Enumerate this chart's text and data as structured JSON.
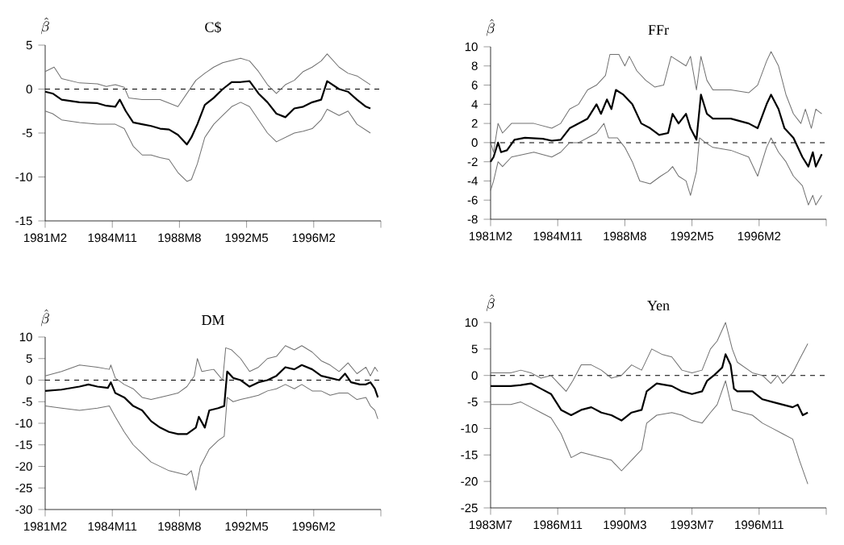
{
  "chart_data": [
    {
      "type": "line",
      "title": "C$",
      "ylabel": "\\hat{\\beta}",
      "xlim": [
        "1981-02",
        "1999-11"
      ],
      "ylim": [
        -15,
        5
      ],
      "xticks": [
        {
          "value": "1981-02",
          "label": "1981M2"
        },
        {
          "value": "1984-11",
          "label": "1984M11"
        },
        {
          "value": "1988-08",
          "label": "1988M8"
        },
        {
          "value": "1992-05",
          "label": "1992M5"
        },
        {
          "value": "1996-02",
          "label": "1996M2"
        },
        {
          "value": "1999-11",
          "label": null
        }
      ],
      "yticks": [
        -15,
        -10,
        -5,
        0,
        5
      ],
      "ref_lines": [
        {
          "axis": "y",
          "value": 0,
          "line_style": "dashed",
          "color": "#000000"
        }
      ],
      "series": [
        {
          "color": "#000000",
          "x": [
            "1981-02",
            "1981-07",
            "1982-01",
            "1983-01",
            "1984-01",
            "1984-07",
            "1985-01",
            "1985-04",
            "1985-08",
            "1986-01",
            "1986-07",
            "1987-01",
            "1987-07",
            "1988-01",
            "1988-07",
            "1989-01",
            "1989-04",
            "1989-08",
            "1990-01",
            "1990-07",
            "1991-01",
            "1991-07",
            "1992-01",
            "1992-07",
            "1993-01",
            "1993-07",
            "1994-01",
            "1994-07",
            "1995-01",
            "1995-07",
            "1996-01",
            "1996-07",
            "1996-11",
            "1997-07",
            "1998-01",
            "1998-07",
            "1999-01",
            "1999-04"
          ],
          "values": [
            -0.3,
            -0.5,
            -1.2,
            -1.5,
            -1.6,
            -1.9,
            -2.0,
            -1.2,
            -2.5,
            -3.8,
            -4.0,
            -4.2,
            -4.5,
            -4.6,
            -5.2,
            -6.3,
            -5.5,
            -4.0,
            -1.8,
            -1.0,
            0.0,
            0.8,
            0.8,
            0.9,
            -0.5,
            -1.5,
            -2.8,
            -3.2,
            -2.2,
            -2.0,
            -1.5,
            -1.2,
            0.9,
            0.0,
            -0.3,
            -1.2,
            -2.0,
            -2.2
          ]
        },
        {
          "color": "#707070",
          "x": [
            "1981-02",
            "1981-08",
            "1982-01",
            "1983-01",
            "1984-01",
            "1984-07",
            "1985-01",
            "1985-07",
            "1985-10",
            "1986-07",
            "1987-07",
            "1988-07",
            "1989-01",
            "1989-07",
            "1990-01",
            "1990-07",
            "1991-01",
            "1992-01",
            "1992-07",
            "1993-01",
            "1993-07",
            "1994-01",
            "1994-07",
            "1995-01",
            "1995-07",
            "1996-01",
            "1996-07",
            "1996-11",
            "1997-07",
            "1998-01",
            "1998-07",
            "1999-04"
          ],
          "values": [
            2.0,
            2.5,
            1.2,
            0.7,
            0.6,
            0.3,
            0.5,
            0.2,
            -1.0,
            -1.2,
            -1.2,
            -2.0,
            -0.5,
            1.0,
            1.8,
            2.5,
            3.0,
            3.5,
            3.2,
            2.0,
            0.5,
            -0.5,
            0.5,
            1.0,
            2.0,
            2.5,
            3.2,
            4.0,
            2.5,
            1.8,
            1.5,
            0.5
          ]
        },
        {
          "color": "#707070",
          "x": [
            "1981-02",
            "1981-07",
            "1982-01",
            "1983-01",
            "1984-01",
            "1985-01",
            "1985-07",
            "1986-01",
            "1986-07",
            "1987-01",
            "1987-07",
            "1988-01",
            "1988-07",
            "1989-01",
            "1989-04",
            "1989-08",
            "1990-01",
            "1990-07",
            "1991-01",
            "1991-07",
            "1992-01",
            "1992-07",
            "1993-01",
            "1993-07",
            "1994-01",
            "1994-07",
            "1995-01",
            "1995-07",
            "1996-01",
            "1996-07",
            "1996-11",
            "1997-07",
            "1998-01",
            "1998-07",
            "1999-04"
          ],
          "values": [
            -2.5,
            -2.8,
            -3.5,
            -3.8,
            -4.0,
            -4.0,
            -4.5,
            -6.5,
            -7.5,
            -7.5,
            -7.8,
            -8.0,
            -9.5,
            -10.5,
            -10.3,
            -8.5,
            -5.5,
            -4.0,
            -3.0,
            -2.0,
            -1.5,
            -2.0,
            -3.5,
            -5.0,
            -6.0,
            -5.5,
            -5.0,
            -4.8,
            -4.5,
            -3.5,
            -2.3,
            -3.0,
            -2.5,
            -4.0,
            -5.0
          ]
        }
      ]
    },
    {
      "type": "line",
      "title": "FFr",
      "ylabel": "\\hat{\\beta}",
      "xlim": [
        "1981-02",
        "1999-11"
      ],
      "ylim": [
        -8,
        10
      ],
      "xticks": [
        {
          "value": "1981-02",
          "label": "1981M2"
        },
        {
          "value": "1984-11",
          "label": "1984M11"
        },
        {
          "value": "1988-08",
          "label": "1988M8"
        },
        {
          "value": "1992-05",
          "label": "1992M5"
        },
        {
          "value": "1996-02",
          "label": "1996M2"
        },
        {
          "value": "1999-11",
          "label": null
        }
      ],
      "yticks": [
        -8,
        -6,
        -4,
        -2,
        0,
        2,
        4,
        6,
        8,
        10
      ],
      "ref_lines": [
        {
          "axis": "y",
          "value": 0,
          "line_style": "dashed",
          "color": "#000000"
        }
      ],
      "series": [
        {
          "color": "#000000",
          "x": [
            "1981-02",
            "1981-04",
            "1981-07",
            "1981-09",
            "1982-01",
            "1982-06",
            "1983-01",
            "1984-01",
            "1984-07",
            "1985-01",
            "1985-07",
            "1986-01",
            "1986-07",
            "1987-01",
            "1987-04",
            "1987-08",
            "1987-11",
            "1988-02",
            "1988-07",
            "1989-01",
            "1989-07",
            "1990-01",
            "1990-07",
            "1991-01",
            "1991-04",
            "1991-08",
            "1992-01",
            "1992-04",
            "1992-08",
            "1992-11",
            "1993-03",
            "1993-07",
            "1994-07",
            "1995-07",
            "1996-01",
            "1996-07",
            "1996-10",
            "1997-03",
            "1997-07",
            "1998-01",
            "1998-07",
            "1998-11",
            "1999-02",
            "1999-04",
            "1999-08"
          ],
          "values": [
            -2.0,
            -1.5,
            0.0,
            -1.0,
            -0.8,
            0.3,
            0.5,
            0.4,
            0.2,
            0.3,
            1.5,
            2.0,
            2.5,
            4.0,
            3.0,
            4.5,
            3.5,
            5.5,
            5.0,
            4.0,
            2.0,
            1.5,
            0.8,
            1.0,
            3.0,
            2.0,
            3.0,
            1.5,
            0.3,
            5.0,
            3.0,
            2.5,
            2.5,
            2.0,
            1.5,
            4.0,
            5.0,
            3.5,
            1.5,
            0.5,
            -1.5,
            -2.5,
            -1.0,
            -2.5,
            -1.2
          ]
        },
        {
          "color": "#707070",
          "x": [
            "1981-02",
            "1981-04",
            "1981-07",
            "1981-10",
            "1982-04",
            "1983-07",
            "1984-07",
            "1985-01",
            "1985-07",
            "1986-01",
            "1986-07",
            "1987-01",
            "1987-07",
            "1987-10",
            "1988-04",
            "1988-08",
            "1988-11",
            "1989-04",
            "1989-10",
            "1990-04",
            "1990-10",
            "1991-03",
            "1991-08",
            "1992-01",
            "1992-04",
            "1992-08",
            "1992-11",
            "1993-03",
            "1993-07",
            "1994-07",
            "1995-07",
            "1996-01",
            "1996-07",
            "1996-10",
            "1997-03",
            "1997-08",
            "1998-01",
            "1998-06",
            "1998-09",
            "1999-01",
            "1999-04",
            "1999-08"
          ],
          "values": [
            0.0,
            -1.0,
            2.0,
            1.0,
            2.0,
            2.0,
            1.5,
            2.0,
            3.5,
            4.0,
            5.5,
            6.0,
            7.0,
            9.2,
            9.2,
            8.0,
            9.0,
            7.5,
            6.5,
            5.8,
            6.0,
            9.0,
            8.5,
            8.0,
            9.0,
            5.5,
            9.0,
            6.5,
            5.5,
            5.5,
            5.2,
            6.0,
            8.5,
            9.5,
            8.0,
            5.0,
            3.0,
            2.0,
            3.5,
            1.5,
            3.5,
            3.0
          ]
        },
        {
          "color": "#707070",
          "x": [
            "1981-02",
            "1981-04",
            "1981-07",
            "1981-10",
            "1982-04",
            "1983-07",
            "1984-07",
            "1985-01",
            "1985-07",
            "1986-01",
            "1986-07",
            "1987-01",
            "1987-06",
            "1987-09",
            "1988-03",
            "1988-08",
            "1989-01",
            "1989-06",
            "1990-01",
            "1990-08",
            "1991-01",
            "1991-04",
            "1991-08",
            "1992-01",
            "1992-04",
            "1992-08",
            "1992-10",
            "1993-02",
            "1993-07",
            "1994-07",
            "1995-07",
            "1996-01",
            "1996-07",
            "1996-10",
            "1997-03",
            "1997-08",
            "1998-01",
            "1998-07",
            "1998-11",
            "1999-02",
            "1999-04",
            "1999-08"
          ],
          "values": [
            -5.0,
            -4.0,
            -2.0,
            -2.5,
            -1.5,
            -1.0,
            -1.5,
            -1.0,
            0.0,
            0.0,
            0.5,
            1.0,
            2.0,
            0.5,
            0.5,
            -0.5,
            -2.0,
            -4.0,
            -4.3,
            -3.5,
            -3.0,
            -2.5,
            -3.5,
            -4.0,
            -5.5,
            -3.0,
            0.5,
            0.0,
            -0.5,
            -0.8,
            -1.5,
            -3.5,
            -0.5,
            0.5,
            -1.0,
            -2.0,
            -3.5,
            -4.5,
            -6.5,
            -5.5,
            -6.5,
            -5.5
          ]
        }
      ]
    },
    {
      "type": "line",
      "title": "DM",
      "ylabel": "\\hat{\\beta}",
      "xlim": [
        "1981-02",
        "1999-11"
      ],
      "ylim": [
        -30,
        10
      ],
      "xticks": [
        {
          "value": "1981-02",
          "label": "1981M2"
        },
        {
          "value": "1984-11",
          "label": "1984M11"
        },
        {
          "value": "1988-08",
          "label": "1988M8"
        },
        {
          "value": "1992-05",
          "label": "1992M5"
        },
        {
          "value": "1996-02",
          "label": "1996M2"
        },
        {
          "value": "1999-11",
          "label": null
        }
      ],
      "yticks": [
        -30,
        -25,
        -20,
        -15,
        -10,
        -5,
        0,
        5,
        10
      ],
      "ref_lines": [
        {
          "axis": "y",
          "value": 0,
          "line_style": "dashed",
          "color": "#000000"
        }
      ],
      "series": [
        {
          "color": "#000000",
          "x": [
            "1981-02",
            "1982-01",
            "1983-01",
            "1983-07",
            "1984-01",
            "1984-08",
            "1984-10",
            "1985-01",
            "1985-07",
            "1986-01",
            "1986-07",
            "1987-01",
            "1987-07",
            "1988-01",
            "1988-07",
            "1989-01",
            "1989-07",
            "1989-09",
            "1990-01",
            "1990-04",
            "1990-10",
            "1991-02",
            "1991-04",
            "1991-08",
            "1992-01",
            "1992-07",
            "1993-01",
            "1993-07",
            "1994-01",
            "1994-07",
            "1995-01",
            "1995-06",
            "1996-01",
            "1996-07",
            "1997-01",
            "1997-07",
            "1997-11",
            "1998-03",
            "1998-09",
            "1999-01",
            "1999-04",
            "1999-07",
            "1999-09"
          ],
          "values": [
            -2.5,
            -2.2,
            -1.5,
            -1.0,
            -1.5,
            -1.8,
            -0.5,
            -3.0,
            -4.0,
            -6.0,
            -7.0,
            -9.5,
            -11.0,
            -12.0,
            -12.5,
            -12.5,
            -11.0,
            -8.5,
            -11.0,
            -7.0,
            -6.5,
            -6.0,
            2.0,
            0.5,
            0.0,
            -1.5,
            -0.5,
            0.0,
            1.0,
            3.0,
            2.5,
            3.5,
            2.5,
            1.0,
            0.5,
            0.0,
            1.5,
            -0.5,
            -1.0,
            -1.0,
            -0.5,
            -2.0,
            -4.0
          ]
        },
        {
          "color": "#707070",
          "x": [
            "1981-02",
            "1982-01",
            "1983-01",
            "1984-01",
            "1984-09",
            "1984-10",
            "1985-01",
            "1985-07",
            "1986-01",
            "1986-07",
            "1987-01",
            "1987-07",
            "1988-01",
            "1988-07",
            "1989-01",
            "1989-06",
            "1989-08",
            "1989-11",
            "1990-07",
            "1991-01",
            "1991-03",
            "1991-07",
            "1992-01",
            "1992-07",
            "1993-01",
            "1993-07",
            "1994-01",
            "1994-07",
            "1995-01",
            "1995-06",
            "1996-01",
            "1996-07",
            "1997-01",
            "1997-07",
            "1998-01",
            "1998-07",
            "1999-01",
            "1999-04",
            "1999-07",
            "1999-09"
          ],
          "values": [
            1.0,
            2.0,
            3.5,
            3.0,
            2.5,
            3.5,
            0.5,
            -1.0,
            -2.0,
            -4.0,
            -4.5,
            -4.0,
            -3.5,
            -3.0,
            -1.5,
            1.0,
            5.0,
            2.0,
            2.5,
            0.0,
            7.5,
            7.0,
            5.0,
            2.0,
            3.0,
            5.0,
            5.5,
            8.0,
            7.0,
            8.0,
            6.5,
            4.5,
            3.5,
            2.0,
            4.0,
            1.5,
            3.0,
            1.0,
            3.0,
            2.0
          ]
        },
        {
          "color": "#707070",
          "x": [
            "1981-02",
            "1982-01",
            "1983-01",
            "1984-01",
            "1984-09",
            "1985-01",
            "1985-07",
            "1986-01",
            "1986-07",
            "1987-01",
            "1987-07",
            "1988-01",
            "1988-07",
            "1989-01",
            "1989-04",
            "1989-07",
            "1989-10",
            "1990-04",
            "1990-10",
            "1991-02",
            "1991-04",
            "1991-08",
            "1992-01",
            "1992-07",
            "1993-01",
            "1993-07",
            "1994-01",
            "1994-07",
            "1995-01",
            "1995-06",
            "1996-01",
            "1996-07",
            "1997-01",
            "1997-07",
            "1998-01",
            "1998-07",
            "1999-01",
            "1999-04",
            "1999-07",
            "1999-09"
          ],
          "values": [
            -6.0,
            -6.5,
            -7.0,
            -6.5,
            -6.0,
            -8.5,
            -12.0,
            -15.0,
            -17.0,
            -19.0,
            -20.0,
            -21.0,
            -21.5,
            -22.0,
            -21.0,
            -25.5,
            -20.0,
            -16.0,
            -14.0,
            -13.0,
            -4.0,
            -5.0,
            -4.5,
            -4.0,
            -3.5,
            -2.5,
            -2.0,
            -1.0,
            -2.0,
            -1.0,
            -2.5,
            -2.5,
            -3.5,
            -3.0,
            -3.0,
            -4.5,
            -4.0,
            -6.0,
            -7.0,
            -9.0
          ]
        }
      ]
    },
    {
      "type": "line",
      "title": "Yen",
      "ylabel": "\\hat{\\beta}",
      "xlim": [
        "1983-07",
        "2000-03"
      ],
      "ylim": [
        -25,
        10
      ],
      "xticks": [
        {
          "value": "1983-07",
          "label": "1983M7"
        },
        {
          "value": "1986-11",
          "label": "1986M11"
        },
        {
          "value": "1990-03",
          "label": "1990M3"
        },
        {
          "value": "1993-07",
          "label": "1993M7"
        },
        {
          "value": "1996-11",
          "label": "1996M11"
        },
        {
          "value": "2000-03",
          "label": null
        }
      ],
      "yticks": [
        -25,
        -20,
        -15,
        -10,
        -5,
        0,
        5,
        10
      ],
      "ref_lines": [
        {
          "axis": "y",
          "value": 0,
          "line_style": "dashed",
          "color": "#000000"
        }
      ],
      "series": [
        {
          "color": "#000000",
          "x": [
            "1983-07",
            "1984-07",
            "1985-01",
            "1985-07",
            "1986-01",
            "1986-07",
            "1986-10",
            "1987-01",
            "1987-07",
            "1988-01",
            "1988-07",
            "1989-01",
            "1989-07",
            "1990-01",
            "1990-07",
            "1991-01",
            "1991-04",
            "1991-10",
            "1992-07",
            "1993-01",
            "1993-07",
            "1994-01",
            "1994-04",
            "1994-08",
            "1995-01",
            "1995-03",
            "1995-06",
            "1995-08",
            "1995-10",
            "1996-07",
            "1997-01",
            "1997-07",
            "1998-01",
            "1998-07",
            "1998-10",
            "1999-01",
            "1999-04"
          ],
          "values": [
            -2.0,
            -2.0,
            -1.8,
            -1.5,
            -2.5,
            -3.5,
            -5.0,
            -6.5,
            -7.5,
            -6.5,
            -6.0,
            -7.0,
            -7.5,
            -8.5,
            -7.0,
            -6.5,
            -3.0,
            -1.5,
            -2.0,
            -3.0,
            -3.5,
            -3.0,
            -1.0,
            0.0,
            1.5,
            4.0,
            2.0,
            -2.5,
            -3.0,
            -3.0,
            -4.5,
            -5.0,
            -5.5,
            -6.0,
            -5.5,
            -7.5,
            -7.0
          ]
        },
        {
          "color": "#707070",
          "x": [
            "1983-07",
            "1984-07",
            "1985-01",
            "1985-07",
            "1986-01",
            "1986-07",
            "1987-01",
            "1987-04",
            "1987-08",
            "1988-01",
            "1988-07",
            "1989-01",
            "1989-07",
            "1990-01",
            "1990-07",
            "1991-01",
            "1991-07",
            "1992-01",
            "1992-07",
            "1993-01",
            "1993-07",
            "1994-01",
            "1994-06",
            "1994-10",
            "1995-03",
            "1995-07",
            "1995-10",
            "1996-07",
            "1997-01",
            "1997-06",
            "1997-10",
            "1998-01",
            "1998-07",
            "1998-11",
            "1999-04"
          ],
          "values": [
            0.5,
            0.5,
            1.0,
            0.5,
            -0.5,
            0.0,
            -2.0,
            -3.0,
            -1.0,
            2.0,
            2.0,
            1.0,
            -0.5,
            0.0,
            2.0,
            1.0,
            5.0,
            4.0,
            3.5,
            1.0,
            0.5,
            1.0,
            5.0,
            6.5,
            10.0,
            5.0,
            2.5,
            0.5,
            0.0,
            -1.5,
            0.0,
            -1.5,
            0.5,
            3.0,
            6.0
          ]
        },
        {
          "color": "#707070",
          "x": [
            "1983-07",
            "1984-07",
            "1985-01",
            "1985-07",
            "1986-01",
            "1986-07",
            "1987-01",
            "1987-07",
            "1988-01",
            "1988-07",
            "1989-01",
            "1989-07",
            "1990-01",
            "1990-07",
            "1991-01",
            "1991-04",
            "1991-10",
            "1992-07",
            "1993-01",
            "1993-07",
            "1994-01",
            "1994-06",
            "1994-10",
            "1995-03",
            "1995-07",
            "1996-01",
            "1996-07",
            "1997-01",
            "1997-07",
            "1998-01",
            "1998-07",
            "1998-11",
            "1999-04"
          ],
          "values": [
            -5.5,
            -5.5,
            -5.0,
            -6.0,
            -7.0,
            -8.0,
            -11.0,
            -15.5,
            -14.5,
            -15.0,
            -15.5,
            -16.0,
            -18.0,
            -16.0,
            -14.0,
            -9.0,
            -7.5,
            -7.0,
            -7.5,
            -8.5,
            -9.0,
            -7.0,
            -5.5,
            -1.0,
            -6.5,
            -7.0,
            -7.5,
            -9.0,
            -10.0,
            -11.0,
            -12.0,
            -16.0,
            -20.5
          ]
        }
      ]
    }
  ]
}
